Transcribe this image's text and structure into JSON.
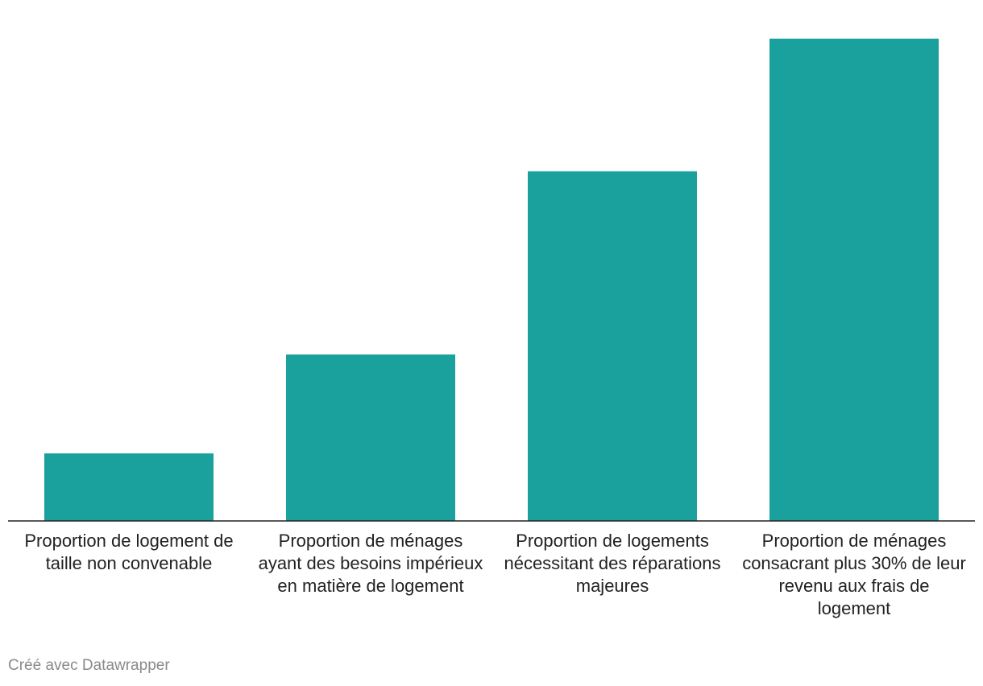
{
  "chart_data": {
    "type": "bar",
    "categories": [
      "Proportion de logement de taille non convenable",
      "Proportion de ménages ayant des besoins impérieux en matière de logement",
      "Proportion de logements nécessitant des réparations majeures",
      "Proportion de ménages consacrant plus 30% de leur revenu aux frais de logement"
    ],
    "values": [
      14,
      34.5,
      72.5,
      100
    ],
    "ylim": [
      0,
      100
    ],
    "color": "#1aa19d",
    "grid": false,
    "title": "",
    "xlabel": "",
    "ylabel": ""
  },
  "credit": "Créé avec Datawrapper"
}
